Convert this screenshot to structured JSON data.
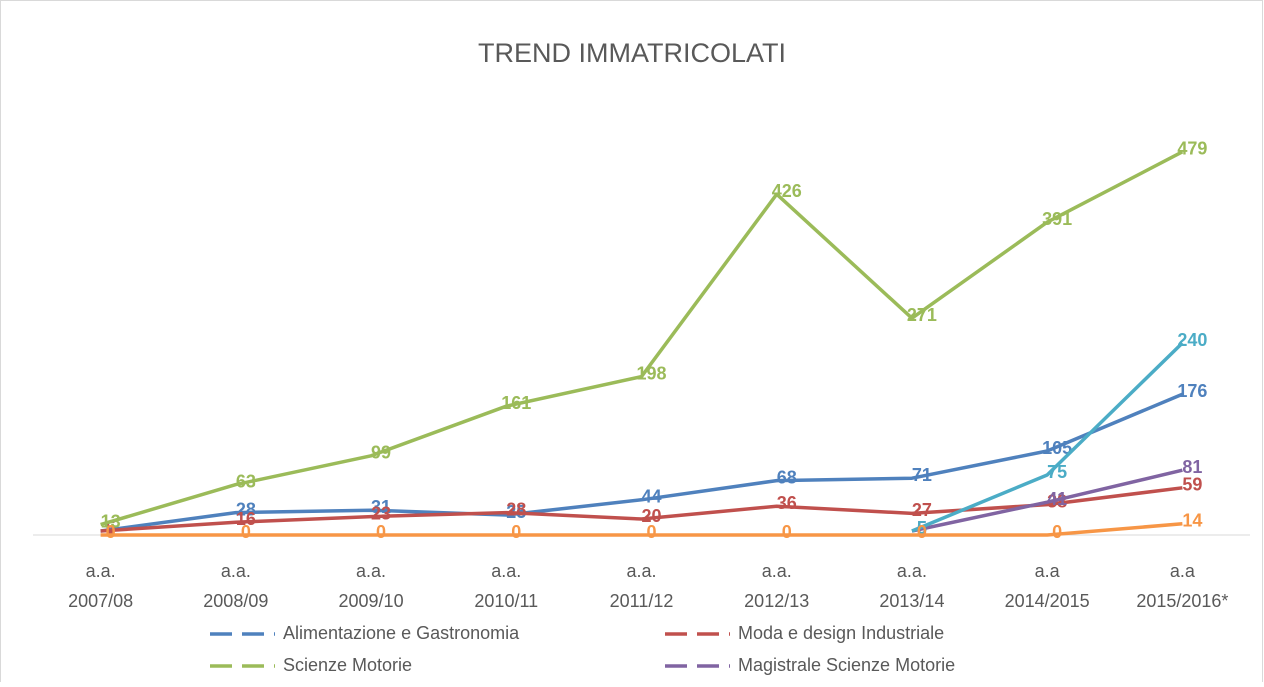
{
  "chart_data": {
    "type": "line",
    "title": "TREND IMMATRICOLATI",
    "categories": [
      "a.a. 2007/08",
      "a.a. 2008/09",
      "a.a. 2009/10",
      "a.a. 2010/11",
      "a.a. 2011/12",
      "a.a. 2012/13",
      "a.a. 2013/14",
      "a.a 2014/2015",
      "a.a 2015/2016*"
    ],
    "series": [
      {
        "name": "Alimentazione e Gastronomia",
        "color": "#4f81bd",
        "values": [
          5,
          28,
          31,
          25,
          44,
          68,
          71,
          105,
          176
        ]
      },
      {
        "name": "Moda e design Industriale",
        "color": "#c0504d",
        "values": [
          5,
          16,
          23,
          28,
          20,
          36,
          27,
          38,
          59
        ]
      },
      {
        "name": "Scienze Motorie",
        "color": "#9bbb59",
        "values": [
          13,
          63,
          99,
          161,
          198,
          426,
          271,
          391,
          479
        ]
      },
      {
        "name": "Magistrale Scienze Motorie",
        "color": "#8064a2",
        "values": [
          null,
          null,
          null,
          null,
          null,
          null,
          5,
          41,
          81
        ]
      },
      {
        "color": "#4bacc6",
        "values": [
          null,
          null,
          null,
          null,
          null,
          null,
          5,
          75,
          240
        ]
      },
      {
        "color": "#f79646",
        "values": [
          0,
          0,
          0,
          0,
          0,
          0,
          0,
          0,
          14
        ]
      }
    ],
    "ylim": [
      0,
      500
    ],
    "legend": "bottom"
  }
}
